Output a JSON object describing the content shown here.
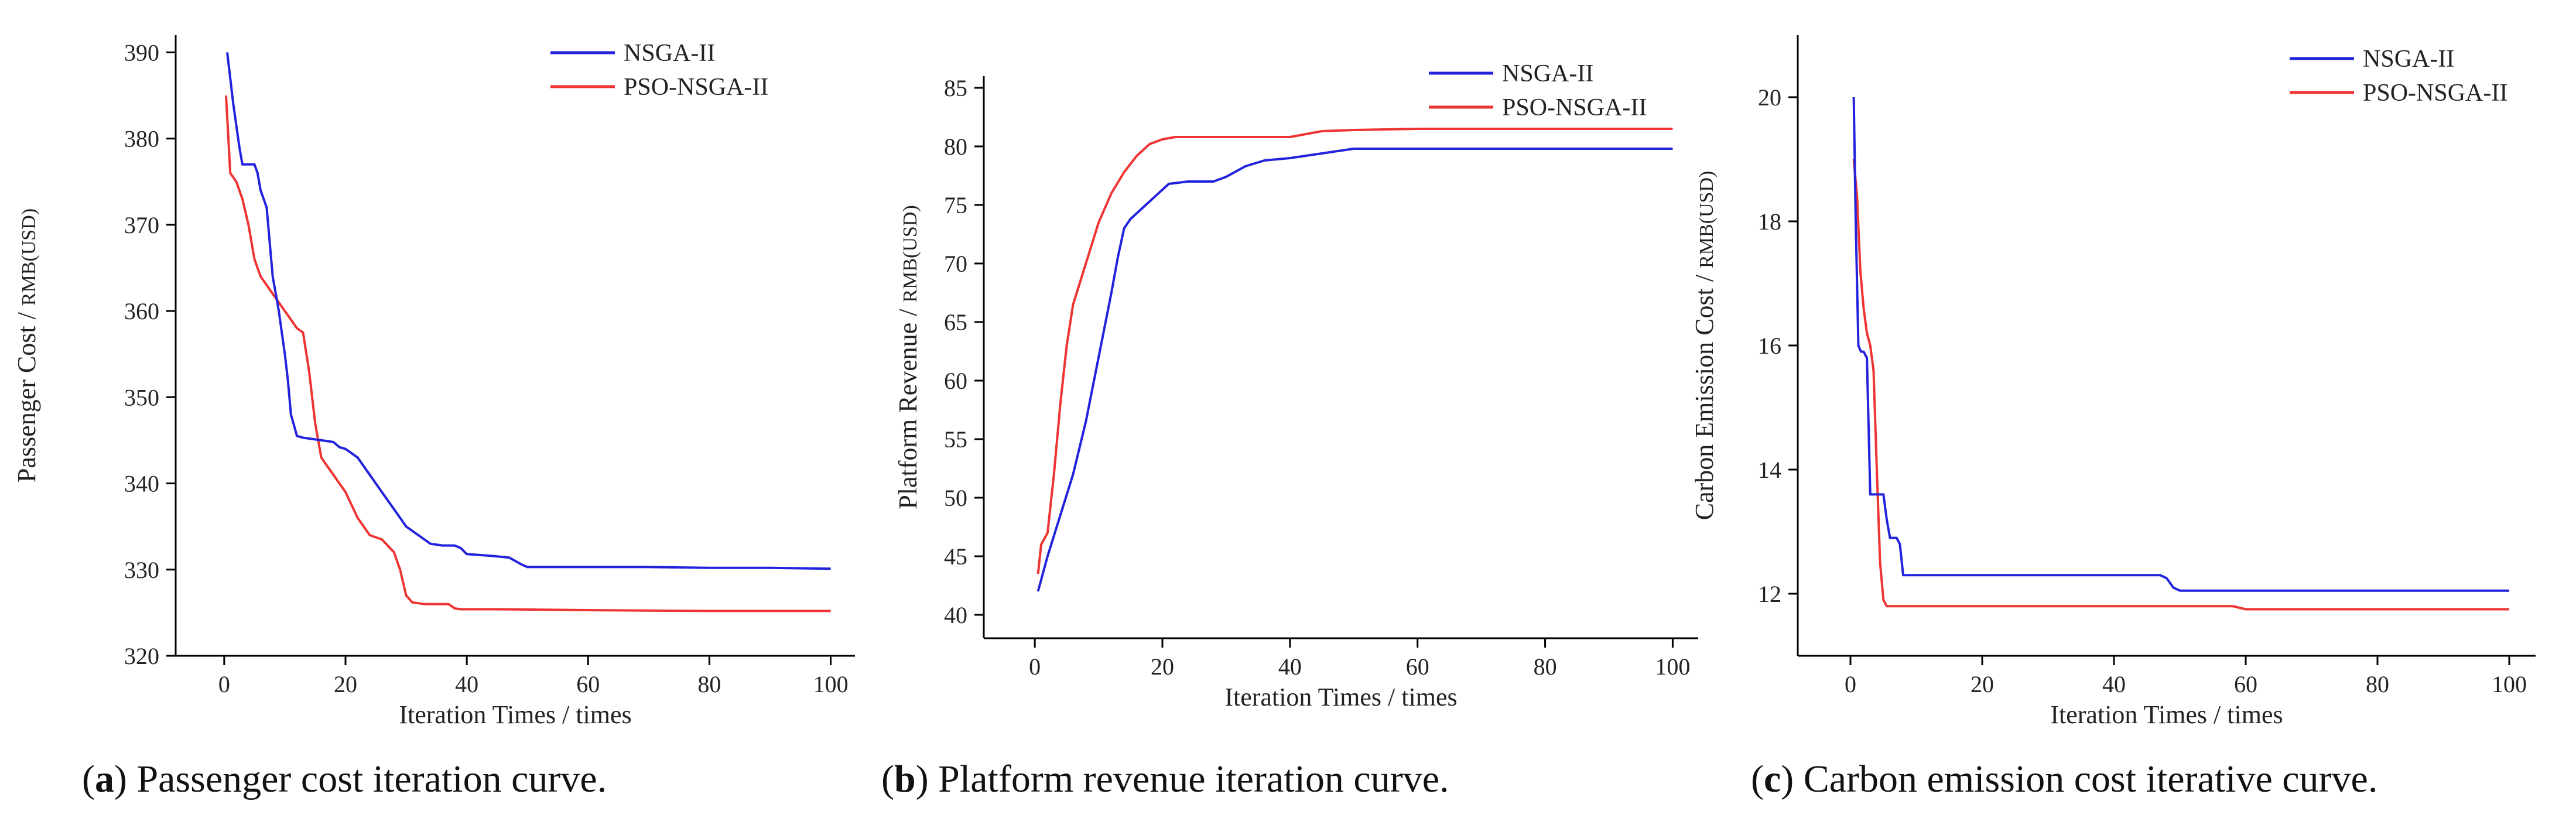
{
  "colors": {
    "NSGA-II": "#2222dd",
    "PSO-NSGA-II": "#ee3333"
  },
  "chart_data": [
    {
      "type": "line",
      "id": "a",
      "caption_letter": "a",
      "caption_text": "Passenger cost iteration curve.",
      "xlabel": "Iteration Times / times",
      "ylabel_main": "Passenger Cost / ",
      "ylabel_small": "RMB(USD)",
      "xlim": [
        -8,
        104
      ],
      "ylim": [
        320,
        392
      ],
      "xticks": [
        0,
        20,
        40,
        60,
        80,
        100
      ],
      "yticks": [
        320,
        330,
        340,
        350,
        360,
        370,
        380,
        390
      ],
      "legend_position": "top-right",
      "series": [
        {
          "name": "NSGA-II",
          "x": [
            0.5,
            1.5,
            2.5,
            3,
            4,
            5,
            5.5,
            6,
            6.5,
            7,
            7.5,
            8,
            9,
            10,
            10.5,
            11,
            12,
            13,
            14,
            16,
            18,
            19,
            20,
            21,
            22,
            24,
            26,
            28,
            30,
            32,
            34,
            36,
            38,
            39,
            40,
            44,
            47,
            49,
            50,
            52,
            60,
            70,
            80,
            90,
            100
          ],
          "y": [
            390,
            384,
            379,
            377,
            377,
            377,
            376,
            374,
            373,
            372,
            368,
            364,
            360,
            355,
            352,
            348,
            345.5,
            345.3,
            345.2,
            345,
            344.8,
            344.2,
            344,
            343.5,
            343,
            341,
            339,
            337,
            335,
            334,
            333,
            332.8,
            332.8,
            332.5,
            331.8,
            331.6,
            331.4,
            330.6,
            330.3,
            330.3,
            330.3,
            330.3,
            330.2,
            330.2,
            330.1
          ]
        },
        {
          "name": "PSO-NSGA-II",
          "x": [
            0.3,
            1,
            2,
            3,
            4,
            5,
            6,
            7,
            8,
            9,
            10,
            11,
            12,
            13,
            14,
            15,
            16,
            17,
            18,
            19,
            20,
            22,
            24,
            26,
            28,
            29,
            30,
            31,
            33,
            37,
            38,
            39,
            45,
            60,
            80,
            100
          ],
          "y": [
            385,
            376,
            375,
            373,
            370,
            366,
            364,
            363,
            362,
            361,
            360,
            359,
            358,
            357.5,
            353,
            347,
            343,
            342,
            341,
            340,
            339,
            336,
            334,
            333.5,
            332,
            330,
            327,
            326.2,
            326,
            326,
            325.5,
            325.4,
            325.4,
            325.3,
            325.2,
            325.2
          ]
        }
      ]
    },
    {
      "type": "line",
      "id": "b",
      "caption_letter": "b",
      "caption_text": "Platform revenue iteration curve.",
      "xlabel": "Iteration Times / times",
      "ylabel_main": "Platform Revenue / ",
      "ylabel_small": "RMB(USD)",
      "xlim": [
        -8,
        104
      ],
      "ylim": [
        38,
        86
      ],
      "xticks": [
        0,
        20,
        40,
        60,
        80,
        100
      ],
      "yticks": [
        40,
        45,
        50,
        55,
        60,
        65,
        70,
        75,
        80,
        85
      ],
      "legend_position": "top-right",
      "series": [
        {
          "name": "NSGA-II",
          "x": [
            0.5,
            2,
            4,
            6,
            8,
            10,
            12,
            13,
            14,
            15,
            17,
            19,
            21,
            24,
            28,
            30,
            33,
            36,
            40,
            45,
            50,
            60,
            80,
            100
          ],
          "y": [
            42,
            45,
            48.5,
            52,
            56.5,
            62,
            67.5,
            70.5,
            73,
            73.8,
            74.8,
            75.8,
            76.8,
            77,
            77,
            77.4,
            78.3,
            78.8,
            79,
            79.4,
            79.8,
            79.8,
            79.8,
            79.8
          ]
        },
        {
          "name": "PSO-NSGA-II",
          "x": [
            0.5,
            1,
            2,
            3,
            4,
            5,
            6,
            8,
            10,
            12,
            14,
            16,
            18,
            20,
            22,
            25,
            30,
            35,
            40,
            45,
            50,
            60,
            80,
            100
          ],
          "y": [
            43.5,
            46,
            47,
            52,
            58,
            63,
            66.5,
            70,
            73.5,
            76,
            77.8,
            79.2,
            80.2,
            80.6,
            80.8,
            80.8,
            80.8,
            80.8,
            80.8,
            81.3,
            81.4,
            81.5,
            81.5,
            81.5
          ]
        }
      ]
    },
    {
      "type": "line",
      "id": "c",
      "caption_letter": "c",
      "caption_text": "Carbon emission cost iterative curve.",
      "xlabel": "Iteration Times / times",
      "ylabel_main": "Carbon Emission Cost / ",
      "ylabel_small": "RMB(USD)",
      "xlim": [
        -8,
        104
      ],
      "ylim": [
        11,
        21
      ],
      "xticks": [
        0,
        20,
        40,
        60,
        80,
        100
      ],
      "yticks": [
        12,
        14,
        16,
        18,
        20
      ],
      "legend_position": "top-right",
      "series": [
        {
          "name": "NSGA-II",
          "x": [
            0.5,
            0.8,
            1.2,
            1.6,
            2,
            2.5,
            2.8,
            3,
            3.5,
            4,
            4.5,
            5,
            5.5,
            6,
            7,
            7.5,
            8,
            10,
            20,
            30,
            40,
            47,
            48,
            49,
            50,
            60,
            80,
            100
          ],
          "y": [
            20,
            18,
            16,
            15.9,
            15.9,
            15.8,
            14.5,
            13.6,
            13.6,
            13.6,
            13.6,
            13.6,
            13.2,
            12.9,
            12.9,
            12.8,
            12.3,
            12.3,
            12.3,
            12.3,
            12.3,
            12.3,
            12.25,
            12.1,
            12.05,
            12.05,
            12.05,
            12.05
          ]
        },
        {
          "name": "PSO-NSGA-II",
          "x": [
            0.5,
            1,
            1.5,
            2,
            2.5,
            3,
            3.5,
            4,
            4.5,
            5,
            5.5,
            7,
            10,
            20,
            40,
            58,
            60,
            80,
            100
          ],
          "y": [
            19,
            18.4,
            17.2,
            16.6,
            16.2,
            16,
            15.6,
            14,
            12.5,
            11.9,
            11.8,
            11.8,
            11.8,
            11.8,
            11.8,
            11.8,
            11.75,
            11.75,
            11.75
          ]
        }
      ]
    }
  ]
}
